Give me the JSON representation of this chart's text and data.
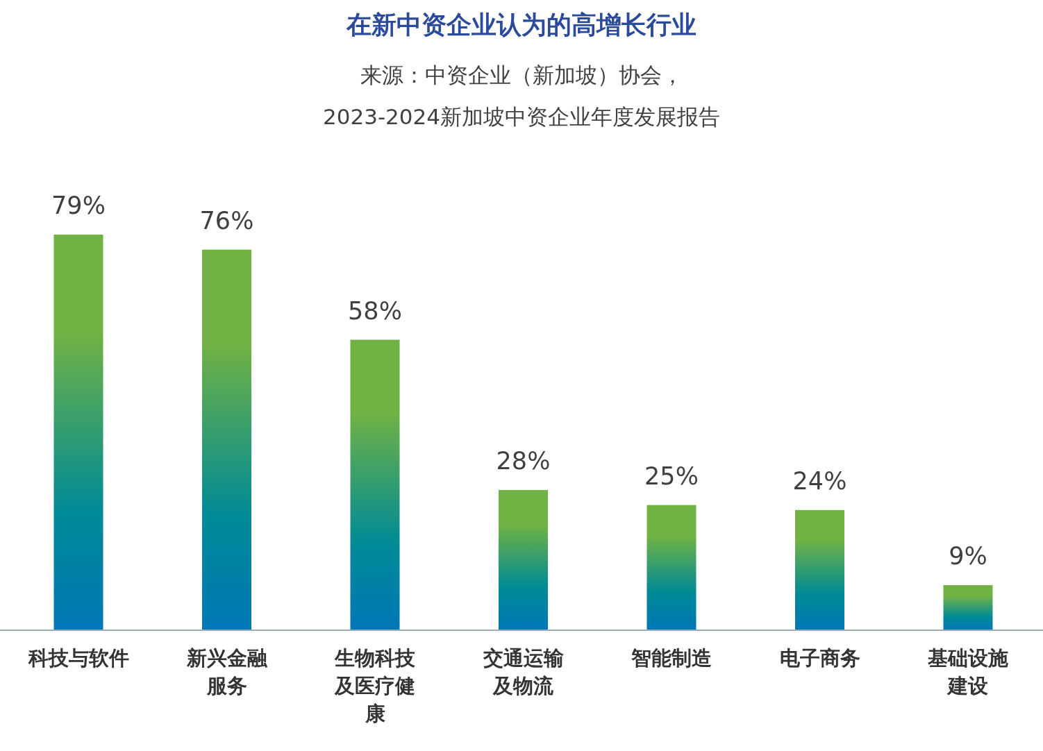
{
  "chart_data": {
    "type": "bar",
    "title": "在新中资企业认为的高增长行业",
    "subtitle": "来源：中资企业（新加坡）协会，",
    "annotations": [
      "2023-2024新加坡中资企业年度发展报告"
    ],
    "categories": [
      "科技与软件",
      "新兴金融服务",
      "生物科技及医疗健康",
      "交通运输及物流",
      "智能制造",
      "电子商务",
      "基础设施建设"
    ],
    "values": [
      79,
      76,
      58,
      28,
      25,
      24,
      9
    ],
    "value_labels": [
      "79%",
      "76%",
      "58%",
      "28%",
      "25%",
      "24%",
      "9%"
    ],
    "color": "#70b244"
  }
}
